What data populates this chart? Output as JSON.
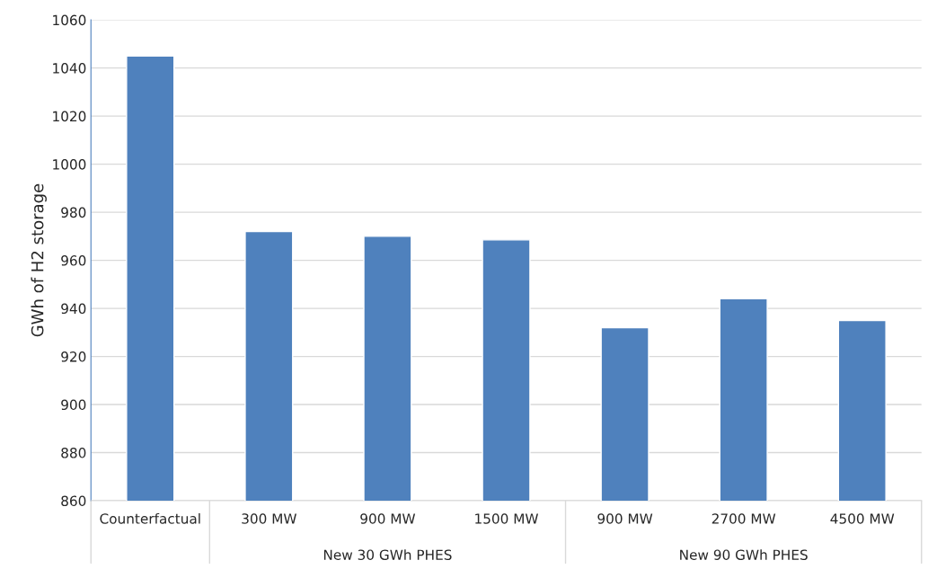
{
  "chart_data": {
    "type": "bar",
    "ylabel": "GWh of H2 storage",
    "categories": [
      "Counterfactual",
      "300 MW",
      "900 MW",
      "1500 MW",
      "900 MW",
      "2700 MW",
      "4500 MW"
    ],
    "values": [
      1045,
      972,
      970,
      968.5,
      932,
      944,
      935
    ],
    "color": "#4f81bd",
    "ylim": [
      860,
      1060
    ],
    "yticks": [
      860,
      880,
      900,
      920,
      940,
      960,
      980,
      1000,
      1020,
      1040,
      1060
    ],
    "grid": "y",
    "annotations": [
      "New 30 GWh PHES",
      "New 90 GWh PHES"
    ]
  }
}
